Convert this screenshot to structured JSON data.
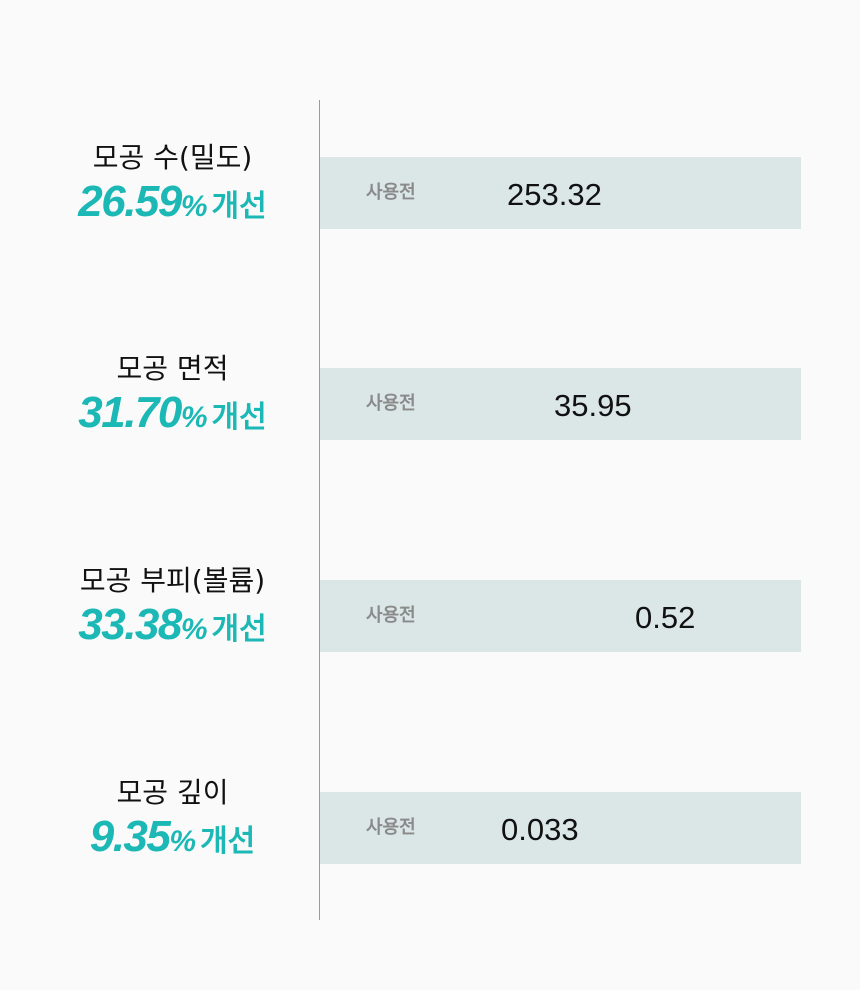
{
  "chart_data": {
    "type": "table",
    "metrics": [
      {
        "name": "모공 수(밀도)",
        "improvement": "26.59",
        "percent_sign": "%",
        "improvement_word": "개선",
        "tag": "사용전",
        "before_value": "253.32"
      },
      {
        "name": "모공 면적",
        "improvement": "31.70",
        "percent_sign": "%",
        "improvement_word": "개선",
        "tag": "사용전",
        "before_value": "35.95"
      },
      {
        "name": "모공 부피(볼륨)",
        "improvement": "33.38",
        "percent_sign": "%",
        "improvement_word": "개선",
        "tag": "사용전",
        "before_value": "0.52"
      },
      {
        "name": "모공 깊이",
        "improvement": "9.35",
        "percent_sign": "%",
        "improvement_word": "개선",
        "tag": "사용전",
        "before_value": "0.033"
      }
    ],
    "colors": {
      "accent": "#1bb8b5",
      "bar_background": "#dae7e6",
      "tag_text": "#8a8a8a",
      "value_text": "#111111",
      "divider": "#9a9a9a",
      "page_background": "#fafafa"
    }
  }
}
